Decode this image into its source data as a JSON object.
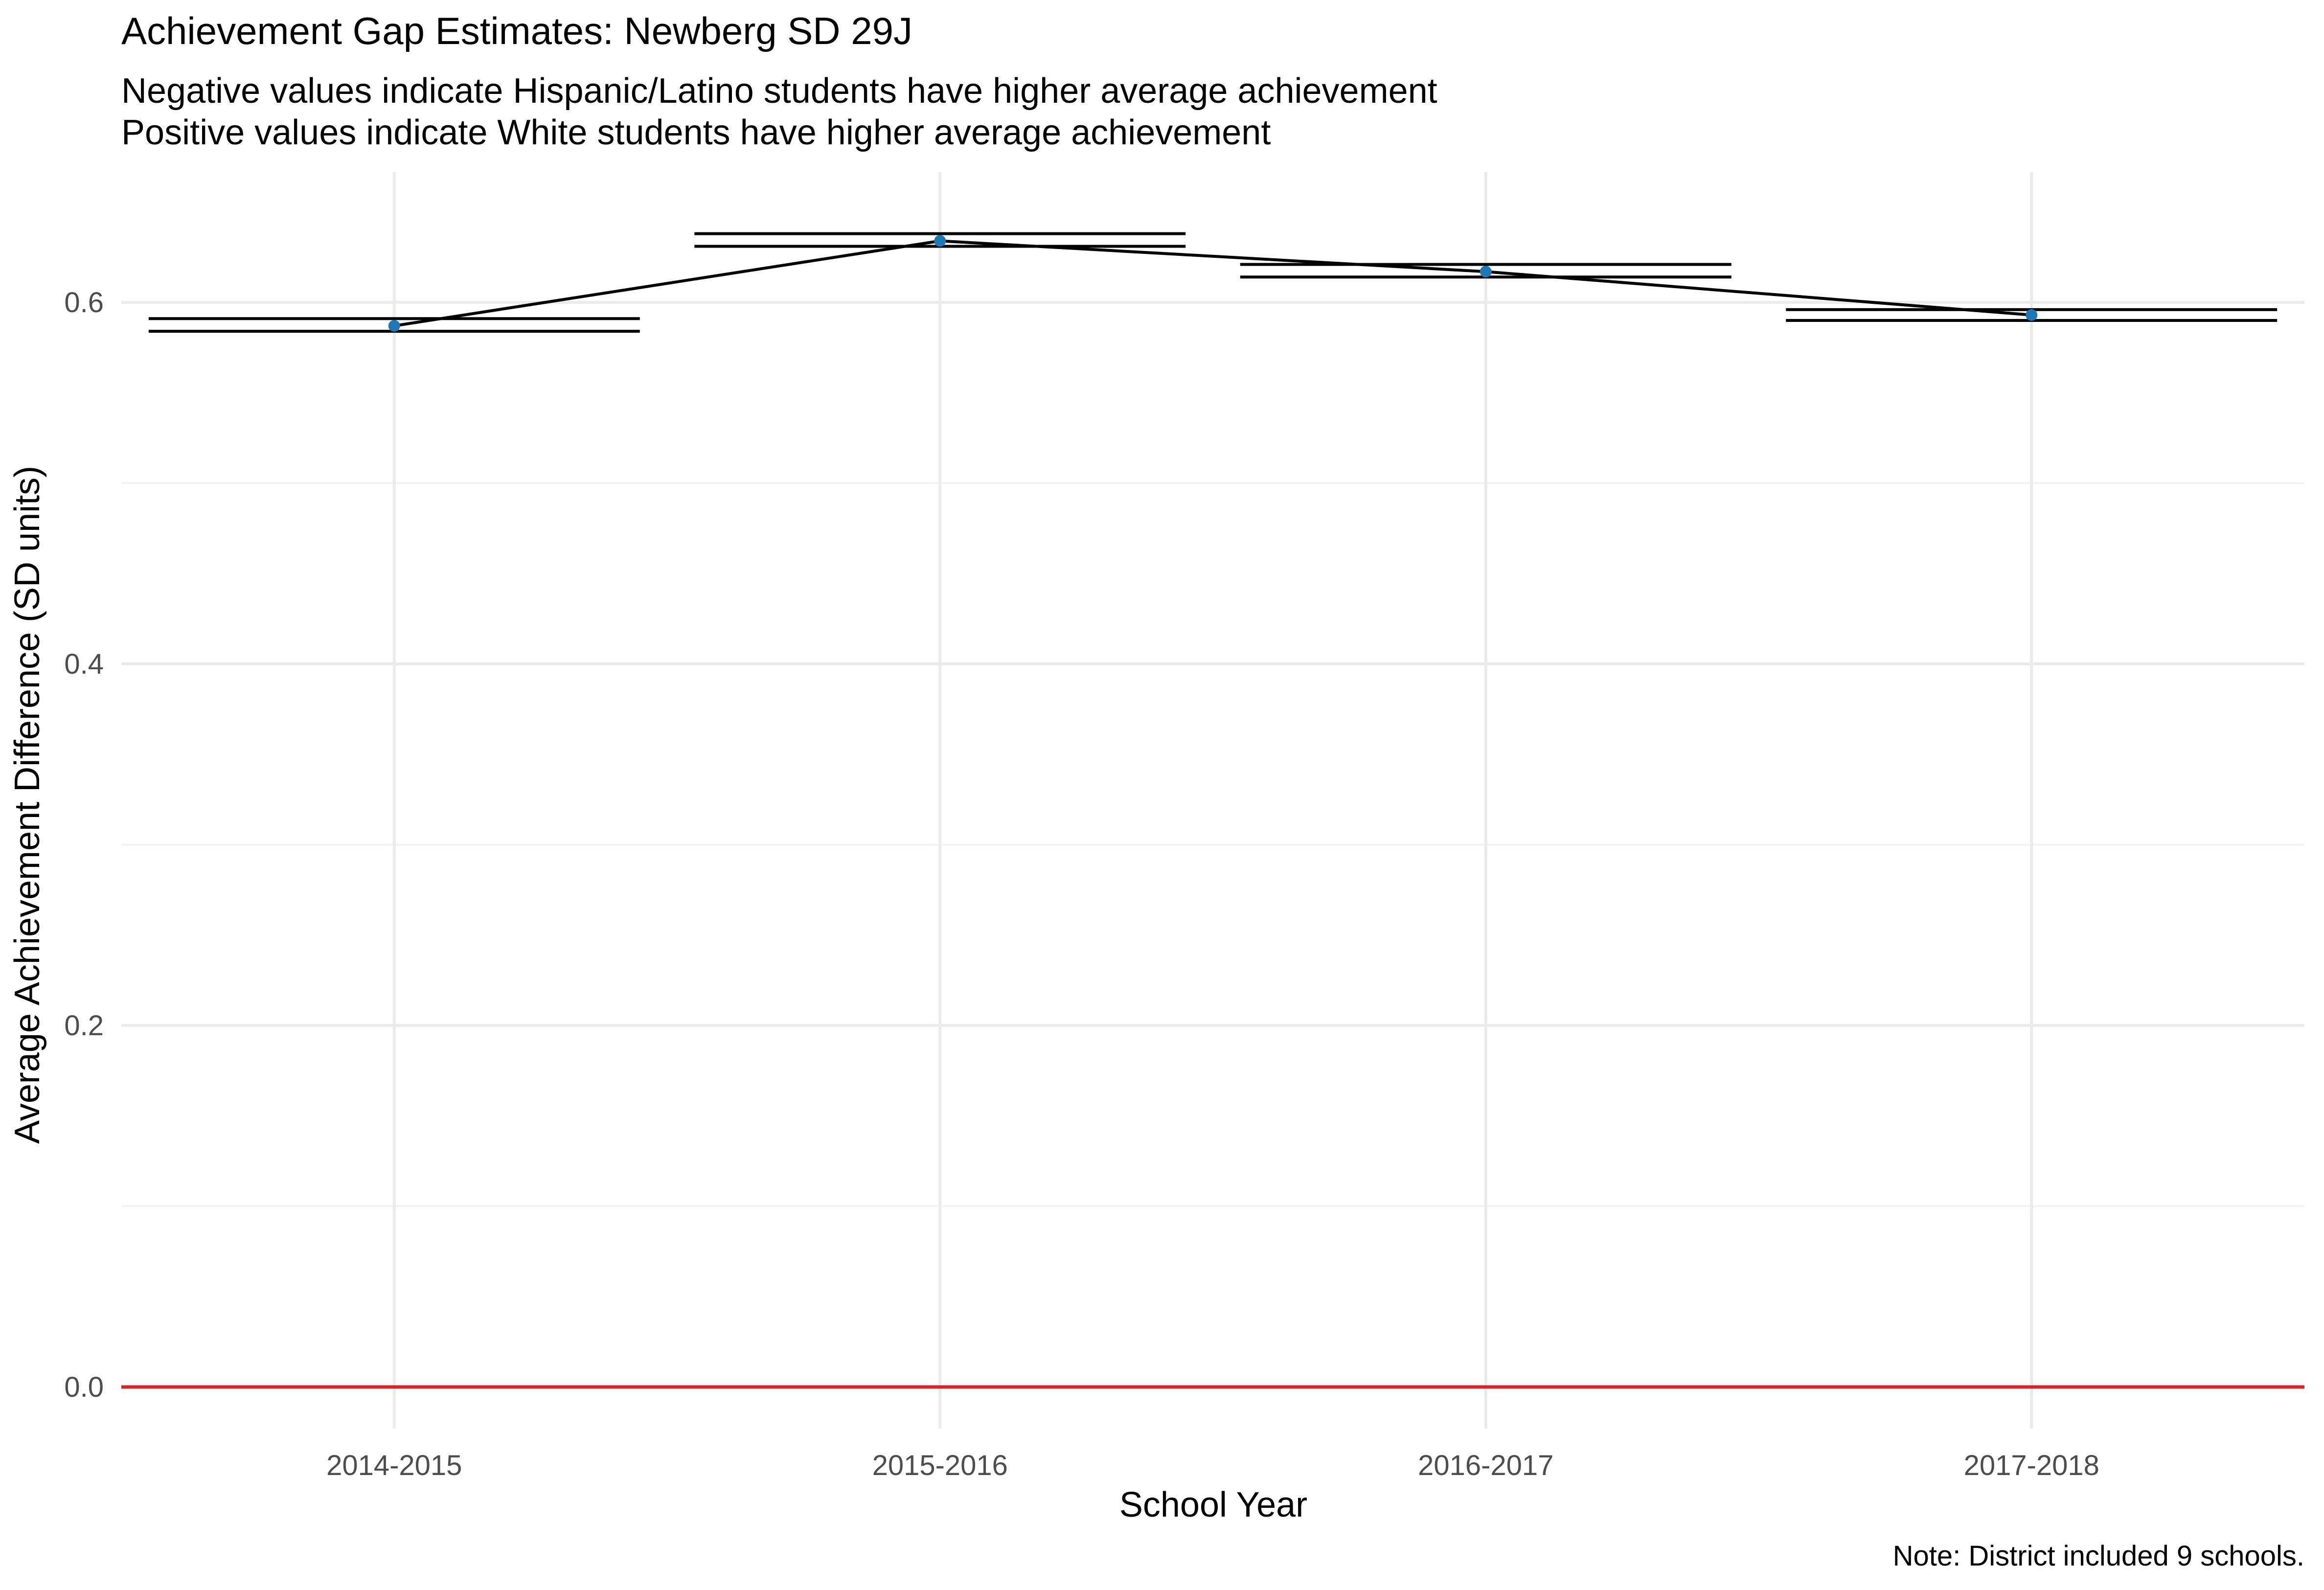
{
  "chart_data": {
    "type": "line",
    "title": "Achievement Gap Estimates: Newberg SD 29J",
    "subtitle": [
      "Negative values indicate Hispanic/Latino students have higher average achievement",
      "Positive values indicate White students have higher average achievement"
    ],
    "xlabel": "School Year",
    "ylabel": "Average Achievement Difference (SD units)",
    "caption": "Note: District included 9 schools.",
    "categories": [
      "2014-2015",
      "2015-2016",
      "2016-2017",
      "2017-2018"
    ],
    "series": [
      {
        "values": [
          0.587,
          0.634,
          0.617,
          0.593
        ],
        "ci_lower": [
          0.584,
          0.631,
          0.614,
          0.59
        ],
        "ci_upper": [
          0.591,
          0.638,
          0.621,
          0.596
        ]
      }
    ],
    "ylim": [
      -0.023,
      0.672
    ],
    "yticks": [
      0.0,
      0.2,
      0.4,
      0.6
    ],
    "ytick_labels": [
      "0.0",
      "0.2",
      "0.4",
      "0.6"
    ],
    "reference_line": {
      "value": 0.0,
      "color": "#d62728"
    },
    "colors": {
      "line": "#000000",
      "point": "#1f77b4",
      "errorbar": "#000000",
      "grid_major": "#ebebeb",
      "grid_minor": "#f3f3f3"
    },
    "grid": true,
    "legend": "none"
  }
}
